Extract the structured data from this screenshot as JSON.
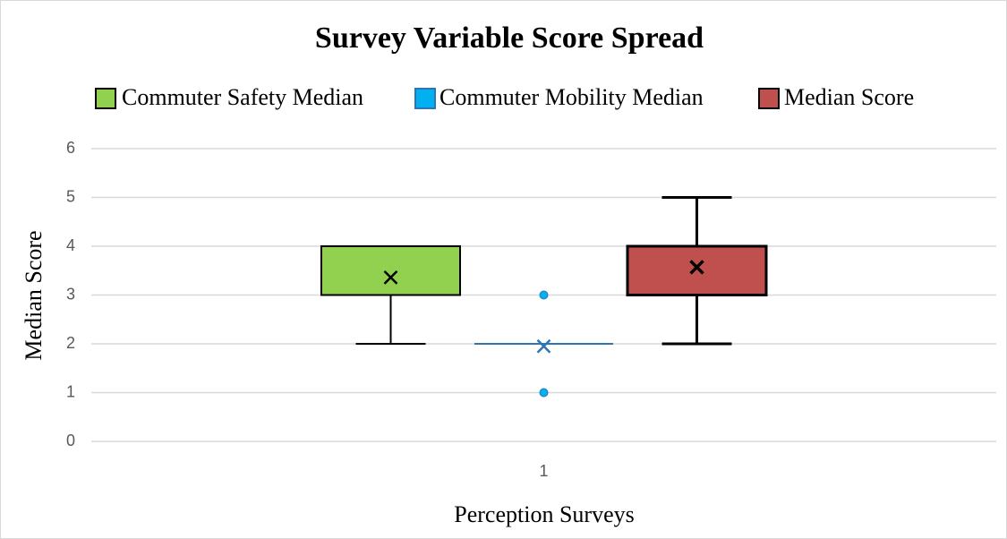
{
  "chart_data": {
    "type": "box",
    "title": "Survey Variable Score Spread",
    "x_label": "Perception Surveys",
    "y_label": "Median Score",
    "categories": [
      "1"
    ],
    "series": [
      {
        "name": "Commuter Safety Median",
        "color": "#92d050",
        "line_color": "#000000",
        "min": 2,
        "q1": 3,
        "median": 4,
        "q3": 4,
        "max": 4,
        "mean": 3.36,
        "outliers": []
      },
      {
        "name": "Commuter Mobility Median",
        "color": "#00b0f0",
        "line_color": "#2e75b6",
        "min": 2,
        "q1": 2,
        "median": 2,
        "q3": 2,
        "max": 2,
        "mean": 1.95,
        "outliers": [
          3,
          1
        ]
      },
      {
        "name": "Median Score",
        "color": "#c0504d",
        "line_color": "#000000",
        "min": 2,
        "q1": 3,
        "median": 4,
        "q3": 4,
        "max": 5,
        "mean": 3.57,
        "outliers": []
      }
    ],
    "ylim": [
      0,
      6
    ],
    "yticks": [
      0,
      1,
      2,
      3,
      4,
      5,
      6
    ],
    "grid": true,
    "legend": "top"
  }
}
